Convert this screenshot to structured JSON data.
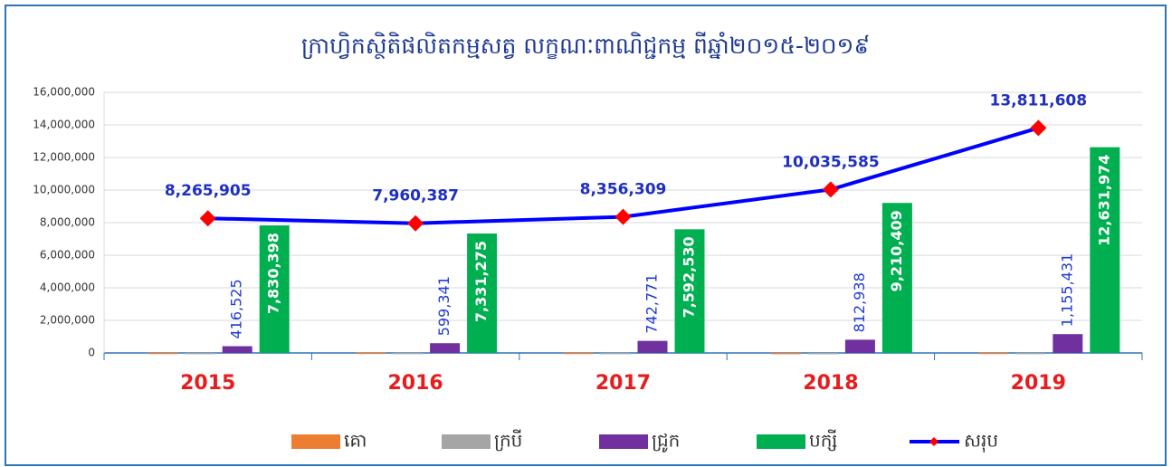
{
  "chart_data": {
    "type": "bar",
    "title": "ក្រាហ្វិកស្ថិតិផលិតកម្មសត្វ លក្ខណៈពាណិជ្ជកម្ម ពីឆ្នាំ២០១៥-២០១៩",
    "categories": [
      "2015",
      "2016",
      "2017",
      "2018",
      "2019"
    ],
    "ylim": [
      0,
      16000000
    ],
    "yticks": [
      0,
      {
        "value": 2000000,
        "label": "2,000,000"
      },
      {
        "value": 4000000,
        "label": "4,000,000"
      },
      {
        "value": 6000000,
        "label": "6,000,000"
      },
      {
        "value": 8000000,
        "label": "8,000,000"
      },
      {
        "value": 10000000,
        "label": "10,000,000"
      },
      {
        "value": 12000000,
        "label": "12,000,000"
      },
      {
        "value": 14000000,
        "label": "14,000,000"
      },
      {
        "value": 16000000,
        "label": "16,000,000"
      }
    ],
    "grid": true,
    "legend": "bottom",
    "series": [
      {
        "name": "គោ",
        "color": "#ed7d31",
        "values": [
          13000,
          20000,
          14000,
          8000,
          16000
        ]
      },
      {
        "name": "ក្របី",
        "color": "#a5a5a5",
        "values": [
          5982,
          9771,
          7008,
          4238,
          8203
        ]
      },
      {
        "name": "ជ្រូក",
        "color": "#7030a0",
        "values": [
          416525,
          599341,
          742771,
          812938,
          1155431
        ],
        "value_labels": [
          "416,525",
          "599,341",
          "742,771",
          "812,938",
          "1,155,431"
        ]
      },
      {
        "name": "បក្សី",
        "color": "#00b050",
        "values": [
          7830398,
          7331275,
          7592530,
          9210409,
          12631974
        ],
        "value_labels": [
          "7,830,398",
          "7,331,275",
          "7,592,530",
          "9,210,409",
          "12,631,974"
        ]
      },
      {
        "name": "សរុប",
        "type": "line",
        "color": "#0000ff",
        "marker_color": "#ff0000",
        "values": [
          8265905,
          7960387,
          8356309,
          10035585,
          13811608
        ],
        "value_labels": [
          "8,265,905",
          "7,960,387",
          "8,356,309",
          "10,035,585",
          "13,811,608"
        ]
      }
    ]
  }
}
